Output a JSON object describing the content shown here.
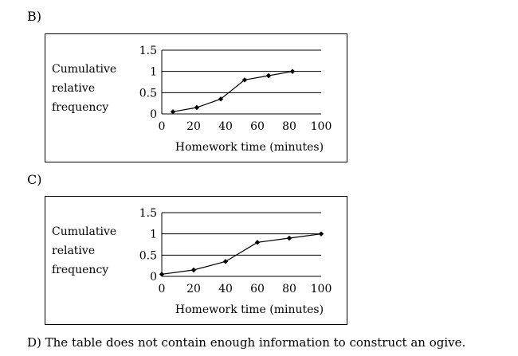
{
  "options": {
    "b_label": "B)",
    "c_label": "C)",
    "d_text": "D) The table does not contain enough information to construct an ogive."
  },
  "chart_data": [
    {
      "type": "line",
      "ylabel_lines": [
        "Cumulative",
        "relative",
        "frequency"
      ],
      "xlabel": "Homework time (minutes)",
      "x_ticks": [
        0,
        20,
        40,
        60,
        80,
        100
      ],
      "y_ticks": [
        "0",
        "0.5",
        "1",
        "1.5"
      ],
      "xlim": [
        0,
        100
      ],
      "ylim": [
        0,
        1.5
      ],
      "grid": "horizontal",
      "x": [
        7,
        22,
        37,
        52,
        67,
        82
      ],
      "y": [
        0.05,
        0.15,
        0.35,
        0.8,
        0.9,
        1.0
      ]
    },
    {
      "type": "line",
      "ylabel_lines": [
        "Cumulative",
        "relative",
        "frequency"
      ],
      "xlabel": "Homework time (minutes)",
      "x_ticks": [
        0,
        20,
        40,
        60,
        80,
        100
      ],
      "y_ticks": [
        "0",
        "0.5",
        "1",
        "1.5"
      ],
      "xlim": [
        0,
        100
      ],
      "ylim": [
        0,
        1.5
      ],
      "grid": "horizontal",
      "x": [
        0,
        20,
        40,
        60,
        80,
        100
      ],
      "y": [
        0.05,
        0.15,
        0.35,
        0.8,
        0.9,
        1.0
      ]
    }
  ]
}
